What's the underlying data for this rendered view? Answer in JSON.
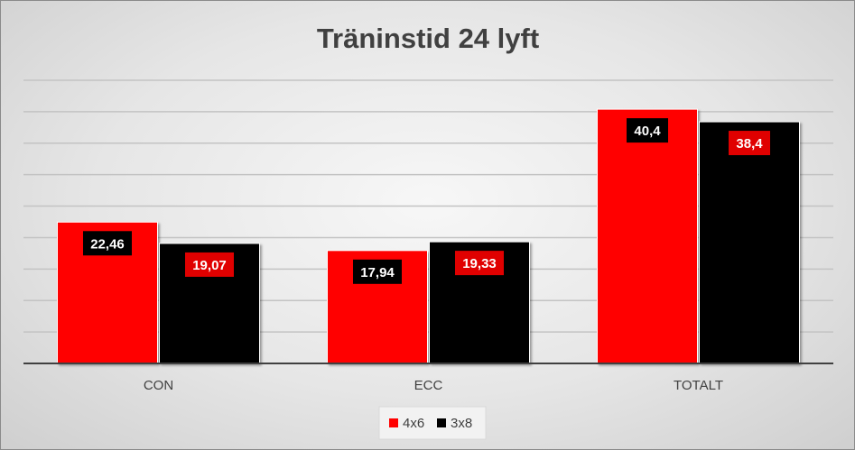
{
  "chart_data": {
    "type": "bar",
    "title": "Träninstid 24 lyft",
    "categories": [
      "CON",
      "ECC",
      "TOTALT"
    ],
    "series": [
      {
        "name": "4x6",
        "values": [
          22.46,
          17.94,
          40.4
        ],
        "labels": [
          "22,46",
          "17,94",
          "40,4"
        ],
        "color": "#ff0000",
        "label_bg": "#000000"
      },
      {
        "name": "3x8",
        "values": [
          19.07,
          19.33,
          38.4
        ],
        "labels": [
          "19,07",
          "19,33",
          "38,4"
        ],
        "color": "#000000",
        "label_bg": "#e00000"
      }
    ],
    "ylim": [
      0,
      45
    ],
    "grid": true,
    "legend_position": "bottom"
  }
}
